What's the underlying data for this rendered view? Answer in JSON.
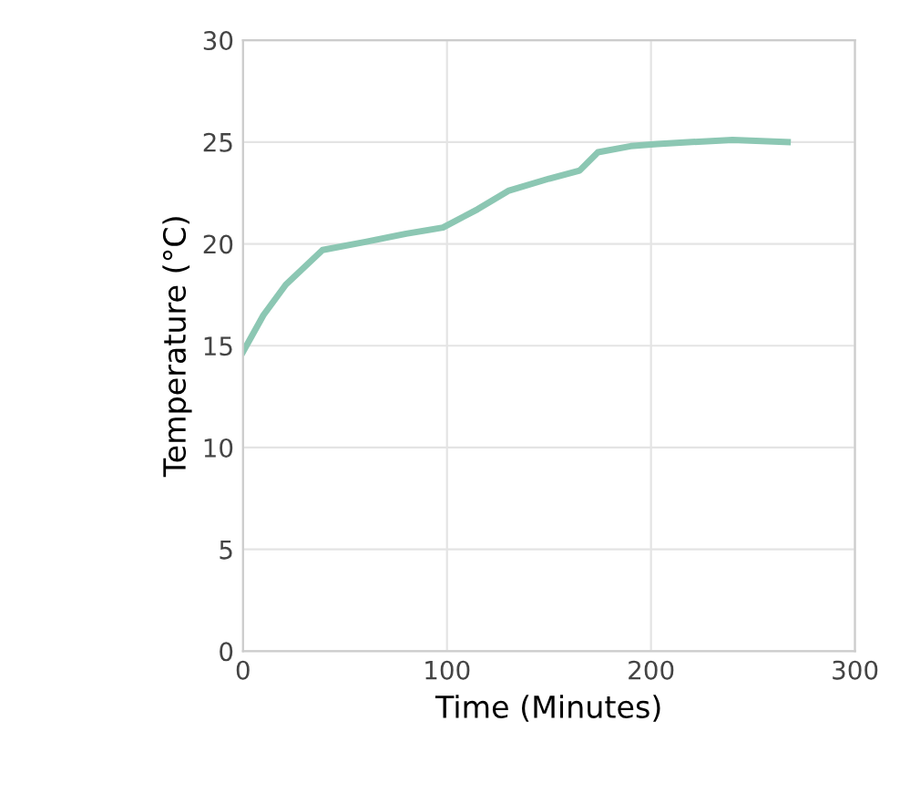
{
  "chart_data": {
    "type": "line",
    "xlabel": "Time (Minutes)",
    "ylabel": "Temperature (°C)",
    "x": [
      0,
      10,
      21,
      39,
      60,
      80,
      98,
      115,
      130,
      150,
      165,
      174,
      190,
      203,
      220,
      240,
      267
    ],
    "series": [
      {
        "color": "#8cc7b3",
        "values": [
          14.7,
          16.5,
          18.0,
          19.7,
          20.1,
          20.5,
          20.8,
          21.7,
          22.6,
          23.2,
          23.6,
          24.5,
          24.8,
          24.9,
          25.0,
          25.1,
          25.0
        ]
      }
    ],
    "xlim": [
      0,
      300
    ],
    "xticks": [
      0,
      100,
      200,
      300
    ],
    "ylim": [
      0,
      30
    ],
    "yticks": [
      0,
      5,
      10,
      15,
      20,
      25,
      30
    ],
    "grid": true,
    "marker": "none",
    "line_style": "solid"
  }
}
